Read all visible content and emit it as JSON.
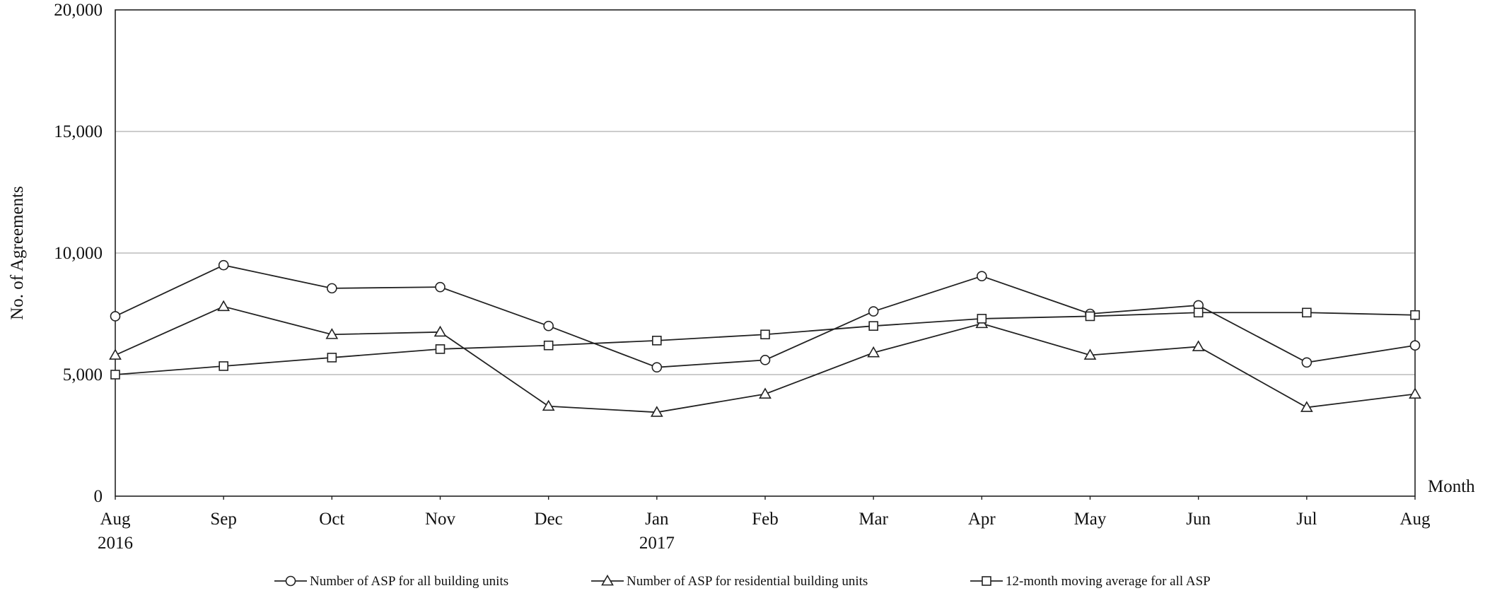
{
  "chart_data": {
    "type": "line",
    "title": "",
    "xlabel": "Month",
    "ylabel": "No. of Agreements",
    "ylim": [
      0,
      20000
    ],
    "yticks": [
      0,
      5000,
      10000,
      15000,
      20000
    ],
    "ytick_labels": [
      "0",
      "5,000",
      "10,000",
      "15,000",
      "20,000"
    ],
    "categories": [
      "Aug 2016",
      "Sep",
      "Oct",
      "Nov",
      "Dec",
      "Jan 2017",
      "Feb",
      "Mar",
      "Apr",
      "May",
      "Jun",
      "Jul",
      "Aug"
    ],
    "month_labels": [
      "Aug",
      "Sep",
      "Oct",
      "Nov",
      "Dec",
      "Jan",
      "Feb",
      "Mar",
      "Apr",
      "May",
      "Jun",
      "Jul",
      "Aug"
    ],
    "year_labels": {
      "0": "2016",
      "5": "2017"
    },
    "grid": true,
    "legend_position": "bottom",
    "series": [
      {
        "name": "Number of ASP for all building units",
        "marker": "circle",
        "values": [
          7400,
          9500,
          8550,
          8600,
          7000,
          5300,
          5600,
          7600,
          9050,
          7500,
          7850,
          5500,
          6200
        ]
      },
      {
        "name": "Number of ASP for residential building units",
        "marker": "triangle",
        "values": [
          5800,
          7800,
          6650,
          6750,
          3700,
          3450,
          4200,
          5900,
          7100,
          5800,
          6150,
          3650,
          4200
        ]
      },
      {
        "name": "12-month moving average for all ASP",
        "marker": "square",
        "values": [
          5000,
          5350,
          5700,
          6050,
          6200,
          6400,
          6650,
          7000,
          7300,
          7400,
          7550,
          7550,
          7450
        ]
      }
    ]
  }
}
